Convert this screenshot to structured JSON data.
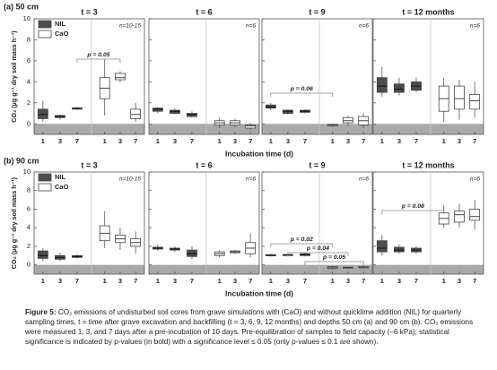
{
  "chart_data": [
    {
      "type": "box",
      "label": "(a) 50 cm",
      "y_label": "CO₂ (µg g⁻¹ dry soil mass h⁻¹)",
      "x_label": "Incubation time (d)",
      "ylim": [
        -1,
        10
      ],
      "yticks": [
        0,
        2,
        4,
        6,
        8,
        10
      ],
      "series": [
        {
          "name": "NIL",
          "color": "#4d4d4d"
        },
        {
          "name": "CaO",
          "color": "#ffffff"
        }
      ],
      "panels": [
        {
          "title": "t = 3",
          "note": "n=10-15",
          "categories": [
            "1",
            "3",
            "7",
            "1",
            "3",
            "7"
          ],
          "series": [
            {
              "values": [
                [
                  0.2,
                  0.5,
                  0.9,
                  1.4,
                  2.2
                ],
                [
                  0.4,
                  0.6,
                  0.7,
                  0.8,
                  0.9
                ],
                [
                  1.3,
                  1.4,
                  1.5,
                  1.5,
                  1.6
                ],
                null,
                null,
                null
              ]
            },
            {
              "values": [
                null,
                null,
                null,
                [
                  0.8,
                  2.4,
                  3.4,
                  4.4,
                  6.2
                ],
                [
                  4.0,
                  4.2,
                  4.4,
                  4.8,
                  5.0
                ],
                [
                  0.2,
                  0.5,
                  0.9,
                  1.4,
                  2.0
                ]
              ]
            }
          ],
          "annotations": [
            "p = 0.05"
          ]
        },
        {
          "title": "t = 6",
          "note": "n=6",
          "categories": [
            "1",
            "3",
            "7",
            "1",
            "3",
            "7"
          ],
          "series": [
            {
              "values": [
                [
                  1.0,
                  1.2,
                  1.4,
                  1.5,
                  1.6
                ],
                [
                  0.9,
                  1.0,
                  1.2,
                  1.3,
                  1.5
                ],
                [
                  0.6,
                  0.7,
                  0.9,
                  1.0,
                  1.2
                ],
                null,
                null,
                null
              ]
            },
            {
              "values": [
                null,
                null,
                null,
                [
                  -0.4,
                  -0.1,
                  0.1,
                  0.3,
                  0.6
                ],
                [
                  -0.3,
                  -0.1,
                  0.1,
                  0.3,
                  0.5
                ],
                [
                  -0.6,
                  -0.4,
                  -0.2,
                  -0.1,
                  0.1
                ]
              ]
            }
          ],
          "annotations": []
        },
        {
          "title": "t = 9",
          "note": "n=6",
          "categories": [
            "1",
            "3",
            "7",
            "1",
            "3",
            "7"
          ],
          "series": [
            {
              "values": [
                [
                  1.3,
                  1.5,
                  1.6,
                  1.8,
                  2.0
                ],
                [
                  0.9,
                  1.0,
                  1.2,
                  1.3,
                  1.4
                ],
                [
                  1.0,
                  1.1,
                  1.2,
                  1.3,
                  1.4
                ],
                null,
                null,
                null
              ]
            },
            {
              "values": [
                null,
                null,
                null,
                [
                  -0.3,
                  -0.2,
                  -0.1,
                  -0.05,
                  0
                ],
                [
                  -0.2,
                  0.1,
                  0.3,
                  0.6,
                  0.8
                ],
                [
                  -0.4,
                  -0.1,
                  0.3,
                  0.7,
                  1.0
                ]
              ]
            }
          ],
          "annotations": [
            "p = 0.06"
          ]
        },
        {
          "title": "t = 12 months",
          "note": "n=6",
          "categories": [
            "1",
            "3",
            "7",
            "1",
            "3",
            "7"
          ],
          "series": [
            {
              "values": [
                [
                  2.6,
                  3.0,
                  3.6,
                  4.4,
                  5.4
                ],
                [
                  2.7,
                  3.0,
                  3.3,
                  3.8,
                  4.4
                ],
                [
                  3.0,
                  3.2,
                  3.6,
                  4.0,
                  4.4
                ],
                null,
                null,
                null
              ]
            },
            {
              "values": [
                null,
                null,
                null,
                [
                  0.2,
                  1.2,
                  2.4,
                  3.6,
                  4.4
                ],
                [
                  0.4,
                  1.4,
                  2.4,
                  3.6,
                  4.2
                ],
                [
                  0.6,
                  1.4,
                  2.2,
                  2.8,
                  4.0
                ]
              ]
            }
          ],
          "annotations": []
        }
      ]
    },
    {
      "type": "box",
      "label": "(b) 90 cm",
      "y_label": "CO₂ (µg g⁻¹ dry soil mass h⁻¹)",
      "x_label": "Incubation time (d)",
      "ylim": [
        -1,
        10
      ],
      "yticks": [
        0,
        2,
        4,
        6,
        8,
        10
      ],
      "series": [
        {
          "name": "NIL",
          "color": "#4d4d4d"
        },
        {
          "name": "CaO",
          "color": "#ffffff"
        }
      ],
      "panels": [
        {
          "title": "t = 3",
          "note": "n=10-15",
          "categories": [
            "1",
            "3",
            "7",
            "1",
            "3",
            "7"
          ],
          "series": [
            {
              "values": [
                [
                  0.4,
                  0.7,
                  1.0,
                  1.5,
                  1.8
                ],
                [
                  0.4,
                  0.6,
                  0.8,
                  1.0,
                  1.3
                ],
                [
                  0.7,
                  0.8,
                  0.9,
                  1.0,
                  1.1
                ],
                null,
                null,
                null
              ]
            },
            {
              "values": [
                null,
                null,
                null,
                [
                  1.8,
                  2.6,
                  3.4,
                  4.2,
                  5.8
                ],
                [
                  1.6,
                  2.4,
                  2.8,
                  3.2,
                  4.0
                ],
                [
                  1.2,
                  2.0,
                  2.4,
                  2.8,
                  3.6
                ]
              ]
            }
          ],
          "annotations": []
        },
        {
          "title": "t = 6",
          "note": "n=6",
          "categories": [
            "1",
            "3",
            "7",
            "1",
            "3",
            "7"
          ],
          "series": [
            {
              "values": [
                [
                  1.5,
                  1.7,
                  1.8,
                  1.9,
                  2.2
                ],
                [
                  1.4,
                  1.6,
                  1.7,
                  1.8,
                  2.0
                ],
                [
                  0.6,
                  0.9,
                  1.2,
                  1.6,
                  2.0
                ],
                null,
                null,
                null
              ]
            },
            {
              "values": [
                null,
                null,
                null,
                [
                  0.8,
                  1.0,
                  1.2,
                  1.4,
                  1.6
                ],
                [
                  1.2,
                  1.3,
                  1.4,
                  1.5,
                  1.6
                ],
                [
                  0.8,
                  1.2,
                  1.8,
                  2.4,
                  3.4
                ]
              ]
            }
          ],
          "annotations": []
        },
        {
          "title": "t = 9",
          "note": "n=6",
          "categories": [
            "1",
            "3",
            "7",
            "1",
            "3",
            "7"
          ],
          "series": [
            {
              "values": [
                [
                  0.9,
                  1.0,
                  1.0,
                  1.1,
                  1.2
                ],
                [
                  0.9,
                  1.0,
                  1.1,
                  1.1,
                  1.2
                ],
                [
                  0.9,
                  1.0,
                  1.1,
                  1.2,
                  1.3
                ],
                null,
                null,
                null
              ]
            },
            {
              "values": [
                null,
                null,
                null,
                [
                  -0.5,
                  -0.4,
                  -0.3,
                  -0.2,
                  -0.1
                ],
                [
                  -0.4,
                  -0.35,
                  -0.3,
                  -0.25,
                  -0.2
                ],
                [
                  -0.4,
                  -0.3,
                  -0.3,
                  -0.2,
                  -0.1
                ]
              ]
            }
          ],
          "annotations": [
            "p = 0.02",
            "p = 0.04",
            "p = 0.05"
          ]
        },
        {
          "title": "t = 12 months",
          "note": "n=6",
          "categories": [
            "1",
            "3",
            "7",
            "1",
            "3",
            "7"
          ],
          "series": [
            {
              "values": [
                [
                  1.0,
                  1.4,
                  1.8,
                  2.6,
                  3.2
                ],
                [
                  1.2,
                  1.4,
                  1.6,
                  1.9,
                  2.2
                ],
                [
                  1.2,
                  1.4,
                  1.6,
                  1.8,
                  2.0
                ],
                null,
                null,
                null
              ]
            },
            {
              "values": [
                null,
                null,
                null,
                [
                  4.0,
                  4.4,
                  5.0,
                  5.6,
                  6.4
                ],
                [
                  4.0,
                  4.6,
                  5.4,
                  5.8,
                  6.6
                ],
                [
                  3.8,
                  4.8,
                  5.2,
                  6.0,
                  7.0
                ]
              ]
            }
          ],
          "annotations": [
            "p = 0.08"
          ]
        }
      ]
    }
  ],
  "caption": {
    "label": "Figure 5:",
    "text": "CO₂ emissions of undisturbed soil cores from grave simulations with (CaO) and without quicklime addition (NIL) for quarterly sampling times, t = time after grave excavation and backfilling (t = 3, 6, 9, 12 months) and depths 50 cm (a) and 90 cm (b). CO₂ emissions were measured 1, 3, and 7 days after a pre-incubation of 10 days. Pre-equilibration of samples to field capacity (–6 kPa); statistical significance is indicated by p-values (in bold) with a significance level ≤ 0.05 (only p-values ≤ 0.1 are shown)."
  }
}
